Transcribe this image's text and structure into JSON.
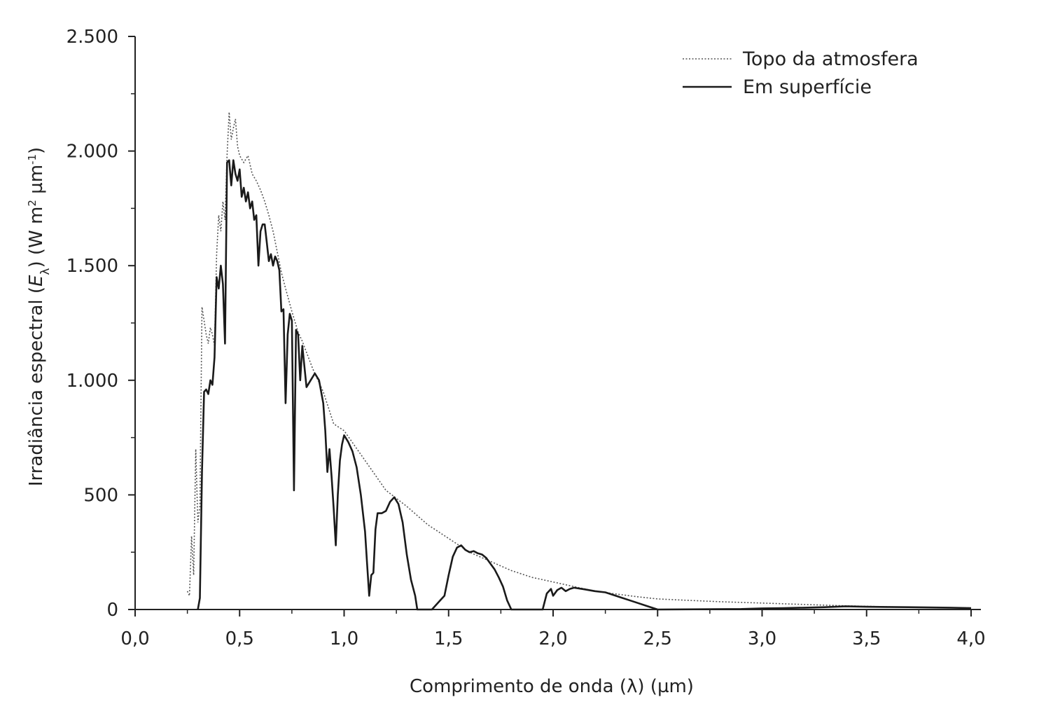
{
  "chart_data": {
    "type": "line",
    "title": "",
    "xlabel": "Comprimento de onda (λ) (µm)",
    "ylabel": {
      "prefix": "Irradiância espectral (",
      "var": "E",
      "sub": "λ",
      "units_open": ") (W m",
      "sup1": "2",
      "units_mid": " µm",
      "sup2": "-1",
      "units_close": ")"
    },
    "xlim": [
      0,
      4.0
    ],
    "ylim": [
      0,
      2500
    ],
    "x_ticks": [
      0,
      0.5,
      1.0,
      1.5,
      2.0,
      2.5,
      3.0,
      3.5,
      4.0
    ],
    "x_tick_labels": [
      "0,0",
      "0,5",
      "1,0",
      "1,5",
      "2,0",
      "2,5",
      "3,0",
      "3,5",
      "4,0"
    ],
    "y_ticks": [
      0,
      500,
      1000,
      1500,
      2000,
      2500
    ],
    "y_tick_labels": [
      "0",
      "500",
      "1.000",
      "1.500",
      "2.000",
      "2.500"
    ],
    "grid": false,
    "legend_position": "top-right",
    "series": [
      {
        "name": "Topo da atmosfera",
        "style": "dotted",
        "color": "#555555",
        "points": [
          [
            0.25,
            80
          ],
          [
            0.26,
            60
          ],
          [
            0.27,
            320
          ],
          [
            0.28,
            150
          ],
          [
            0.29,
            700
          ],
          [
            0.3,
            380
          ],
          [
            0.31,
            450
          ],
          [
            0.32,
            1320
          ],
          [
            0.33,
            1260
          ],
          [
            0.34,
            1200
          ],
          [
            0.35,
            1160
          ],
          [
            0.36,
            1230
          ],
          [
            0.37,
            1200
          ],
          [
            0.38,
            1150
          ],
          [
            0.39,
            1550
          ],
          [
            0.4,
            1720
          ],
          [
            0.41,
            1650
          ],
          [
            0.42,
            1780
          ],
          [
            0.43,
            1700
          ],
          [
            0.44,
            1980
          ],
          [
            0.45,
            2170
          ],
          [
            0.46,
            2050
          ],
          [
            0.47,
            2100
          ],
          [
            0.48,
            2140
          ],
          [
            0.49,
            2020
          ],
          [
            0.5,
            1980
          ],
          [
            0.52,
            1950
          ],
          [
            0.54,
            1980
          ],
          [
            0.56,
            1900
          ],
          [
            0.58,
            1870
          ],
          [
            0.6,
            1830
          ],
          [
            0.62,
            1780
          ],
          [
            0.64,
            1720
          ],
          [
            0.66,
            1650
          ],
          [
            0.68,
            1560
          ],
          [
            0.7,
            1470
          ],
          [
            0.72,
            1400
          ],
          [
            0.75,
            1300
          ],
          [
            0.78,
            1210
          ],
          [
            0.8,
            1170
          ],
          [
            0.85,
            1050
          ],
          [
            0.9,
            950
          ],
          [
            0.95,
            810
          ],
          [
            1.0,
            780
          ],
          [
            1.1,
            650
          ],
          [
            1.2,
            520
          ],
          [
            1.3,
            450
          ],
          [
            1.4,
            370
          ],
          [
            1.5,
            310
          ],
          [
            1.6,
            250
          ],
          [
            1.7,
            210
          ],
          [
            1.8,
            170
          ],
          [
            1.9,
            140
          ],
          [
            2.0,
            120
          ],
          [
            2.1,
            100
          ],
          [
            2.2,
            80
          ],
          [
            2.3,
            68
          ],
          [
            2.4,
            56
          ],
          [
            2.5,
            46
          ],
          [
            2.6,
            42
          ],
          [
            2.8,
            34
          ],
          [
            3.0,
            28
          ],
          [
            3.2,
            22
          ],
          [
            3.4,
            16
          ],
          [
            3.6,
            12
          ],
          [
            3.8,
            9
          ],
          [
            4.0,
            7
          ]
        ]
      },
      {
        "name": "Em superfície",
        "style": "solid",
        "color": "#1a1a1a",
        "points": [
          [
            0.3,
            0
          ],
          [
            0.31,
            50
          ],
          [
            0.32,
            600
          ],
          [
            0.33,
            950
          ],
          [
            0.34,
            960
          ],
          [
            0.35,
            940
          ],
          [
            0.36,
            1000
          ],
          [
            0.37,
            980
          ],
          [
            0.38,
            1100
          ],
          [
            0.39,
            1450
          ],
          [
            0.4,
            1400
          ],
          [
            0.41,
            1500
          ],
          [
            0.42,
            1420
          ],
          [
            0.43,
            1160
          ],
          [
            0.44,
            1950
          ],
          [
            0.45,
            1960
          ],
          [
            0.46,
            1850
          ],
          [
            0.47,
            1960
          ],
          [
            0.48,
            1900
          ],
          [
            0.49,
            1870
          ],
          [
            0.5,
            1920
          ],
          [
            0.51,
            1800
          ],
          [
            0.52,
            1840
          ],
          [
            0.53,
            1780
          ],
          [
            0.54,
            1820
          ],
          [
            0.55,
            1750
          ],
          [
            0.56,
            1780
          ],
          [
            0.57,
            1700
          ],
          [
            0.58,
            1720
          ],
          [
            0.59,
            1500
          ],
          [
            0.6,
            1650
          ],
          [
            0.61,
            1680
          ],
          [
            0.62,
            1680
          ],
          [
            0.63,
            1600
          ],
          [
            0.64,
            1520
          ],
          [
            0.65,
            1550
          ],
          [
            0.66,
            1500
          ],
          [
            0.67,
            1540
          ],
          [
            0.68,
            1520
          ],
          [
            0.69,
            1480
          ],
          [
            0.7,
            1300
          ],
          [
            0.71,
            1310
          ],
          [
            0.72,
            900
          ],
          [
            0.73,
            1200
          ],
          [
            0.74,
            1290
          ],
          [
            0.75,
            1260
          ],
          [
            0.76,
            520
          ],
          [
            0.77,
            1220
          ],
          [
            0.78,
            1200
          ],
          [
            0.79,
            1000
          ],
          [
            0.8,
            1150
          ],
          [
            0.82,
            970
          ],
          [
            0.84,
            1000
          ],
          [
            0.86,
            1030
          ],
          [
            0.88,
            1000
          ],
          [
            0.9,
            900
          ],
          [
            0.91,
            780
          ],
          [
            0.92,
            600
          ],
          [
            0.93,
            700
          ],
          [
            0.94,
            580
          ],
          [
            0.95,
            440
          ],
          [
            0.96,
            280
          ],
          [
            0.97,
            500
          ],
          [
            0.98,
            650
          ],
          [
            0.99,
            720
          ],
          [
            1.0,
            760
          ],
          [
            1.02,
            730
          ],
          [
            1.04,
            690
          ],
          [
            1.06,
            620
          ],
          [
            1.08,
            500
          ],
          [
            1.1,
            340
          ],
          [
            1.11,
            200
          ],
          [
            1.12,
            60
          ],
          [
            1.13,
            150
          ],
          [
            1.14,
            160
          ],
          [
            1.15,
            350
          ],
          [
            1.16,
            420
          ],
          [
            1.18,
            420
          ],
          [
            1.2,
            430
          ],
          [
            1.22,
            470
          ],
          [
            1.24,
            490
          ],
          [
            1.26,
            460
          ],
          [
            1.28,
            380
          ],
          [
            1.3,
            240
          ],
          [
            1.32,
            130
          ],
          [
            1.34,
            60
          ],
          [
            1.35,
            0
          ],
          [
            1.42,
            0
          ],
          [
            1.44,
            20
          ],
          [
            1.46,
            40
          ],
          [
            1.48,
            60
          ],
          [
            1.5,
            150
          ],
          [
            1.52,
            230
          ],
          [
            1.54,
            270
          ],
          [
            1.56,
            280
          ],
          [
            1.58,
            260
          ],
          [
            1.6,
            250
          ],
          [
            1.62,
            255
          ],
          [
            1.64,
            245
          ],
          [
            1.66,
            240
          ],
          [
            1.68,
            225
          ],
          [
            1.7,
            200
          ],
          [
            1.72,
            175
          ],
          [
            1.74,
            140
          ],
          [
            1.76,
            100
          ],
          [
            1.78,
            40
          ],
          [
            1.8,
            0
          ],
          [
            1.95,
            0
          ],
          [
            1.97,
            70
          ],
          [
            1.99,
            90
          ],
          [
            2.0,
            60
          ],
          [
            2.02,
            85
          ],
          [
            2.04,
            95
          ],
          [
            2.06,
            80
          ],
          [
            2.08,
            90
          ],
          [
            2.1,
            95
          ],
          [
            2.15,
            88
          ],
          [
            2.2,
            80
          ],
          [
            2.25,
            75
          ],
          [
            2.3,
            60
          ],
          [
            2.35,
            45
          ],
          [
            2.4,
            30
          ],
          [
            2.45,
            15
          ],
          [
            2.5,
            0
          ],
          [
            2.9,
            2
          ],
          [
            3.0,
            5
          ],
          [
            3.1,
            6
          ],
          [
            3.2,
            8
          ],
          [
            3.3,
            10
          ],
          [
            3.4,
            14
          ],
          [
            3.5,
            12
          ],
          [
            3.6,
            11
          ],
          [
            3.7,
            10
          ],
          [
            3.8,
            9
          ],
          [
            3.9,
            8
          ],
          [
            4.0,
            6
          ]
        ]
      }
    ]
  }
}
